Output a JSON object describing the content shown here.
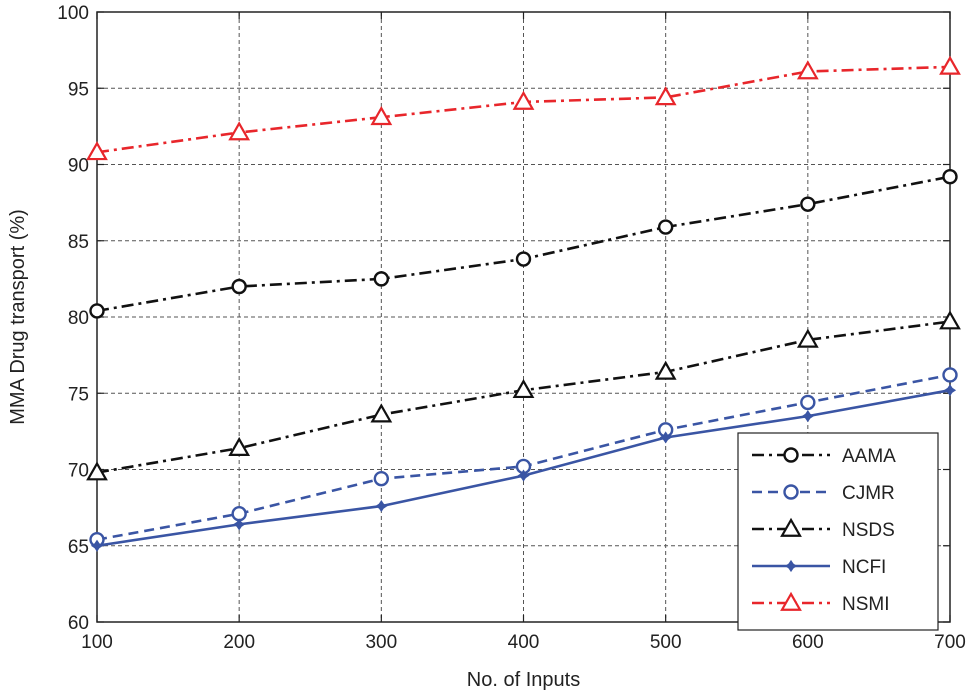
{
  "chart_data": {
    "type": "line",
    "title": "",
    "xlabel": "No. of Inputs",
    "ylabel": "MMA Drug transport (%)",
    "xlim": [
      100,
      700
    ],
    "ylim": [
      60,
      100
    ],
    "x": [
      100,
      200,
      300,
      400,
      500,
      600,
      700
    ],
    "xticks": [
      "100",
      "200",
      "300",
      "400",
      "500",
      "600",
      "700"
    ],
    "yticks": [
      "60",
      "65",
      "70",
      "75",
      "80",
      "85",
      "90",
      "95",
      "100"
    ],
    "grid": true,
    "legend_position": "bottom-right",
    "series": [
      {
        "name": "AAMA",
        "values": [
          80.4,
          82.0,
          82.5,
          83.8,
          85.9,
          87.4,
          89.2
        ],
        "color": "#111111",
        "dash": "dashdot",
        "marker": "circle"
      },
      {
        "name": "CJMR",
        "values": [
          65.4,
          67.1,
          69.4,
          70.2,
          72.6,
          74.4,
          76.2
        ],
        "color": "#3a55a4",
        "dash": "dashed",
        "marker": "circle"
      },
      {
        "name": "NSDS",
        "values": [
          69.8,
          71.4,
          73.6,
          75.2,
          76.4,
          78.5,
          79.7
        ],
        "color": "#111111",
        "dash": "dashdot",
        "marker": "triangle"
      },
      {
        "name": "NCFI",
        "values": [
          65.0,
          66.4,
          67.6,
          69.6,
          72.1,
          73.5,
          75.2
        ],
        "color": "#3a55a4",
        "dash": "solid",
        "marker": "star"
      },
      {
        "name": "NSMI",
        "values": [
          90.8,
          92.1,
          93.1,
          94.1,
          94.4,
          96.1,
          96.4
        ],
        "color": "#e8262b",
        "dash": "dashdot",
        "marker": "triangle"
      }
    ]
  }
}
